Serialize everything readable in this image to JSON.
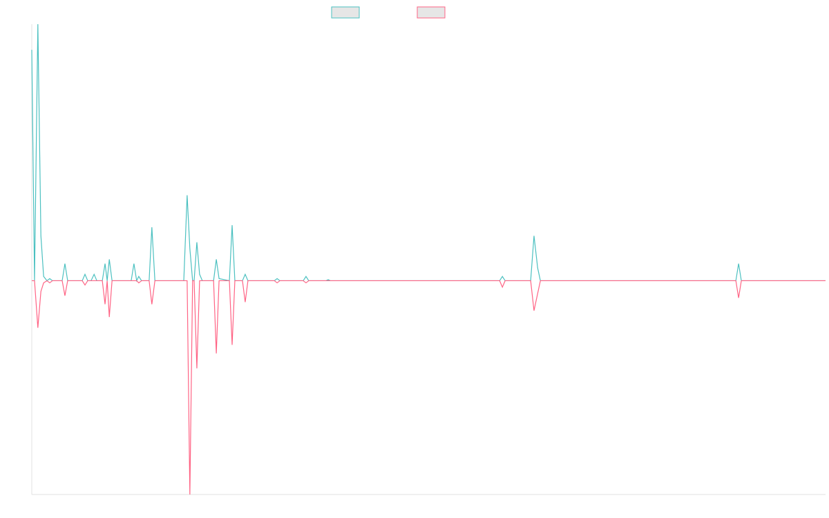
{
  "chart_data": {
    "type": "line",
    "x": [
      0,
      0.9,
      2.0,
      3.0,
      3.9,
      5.0,
      5.9,
      6.8,
      10,
      10.9,
      11.8,
      16.6,
      17.5,
      18.4,
      19.5,
      20.5,
      21.4,
      23.2,
      24.1,
      24.8,
      25.5,
      26.4,
      32.7,
      33.6,
      34.5,
      35.2,
      36.1,
      38.6,
      39.5,
      40.5,
      50,
      51.1,
      52.0,
      52.9,
      53.4,
      54.3,
      55.2,
      56.1,
      59.8,
      60.7,
      61.6,
      65,
      65.9,
      66.8,
      69.3,
      70.2,
      71.1,
      79.8,
      80.7,
      81.6,
      89.3,
      90.2,
      91.1,
      96.8,
      97.5,
      98.2,
      153.9,
      154.8,
      155.7,
      164.1,
      165.2,
      166.4,
      167.3,
      231.6,
      232.5,
      233.4,
      261.1
    ],
    "series": [
      {
        "color": "#4bc0c0",
        "values": [
          108,
          0,
          120,
          21,
          2,
          0,
          1,
          0,
          0,
          8,
          0,
          0,
          3,
          0,
          0,
          3,
          0,
          0,
          8,
          0,
          10,
          0,
          0,
          8,
          0,
          2,
          0,
          0,
          25,
          0,
          0,
          40,
          15,
          0,
          0,
          18,
          3,
          0,
          0,
          10,
          1,
          0,
          26,
          0,
          0,
          3,
          0,
          0,
          1,
          0,
          0,
          2,
          0,
          0,
          0.5,
          0,
          0,
          2,
          0,
          0,
          21,
          6,
          0,
          0,
          8,
          0,
          0
        ]
      },
      {
        "color": "#ff6384",
        "values": [
          0,
          0,
          -22,
          -5,
          -1,
          0,
          -1,
          0,
          0,
          -7,
          0,
          0,
          -2,
          0,
          0,
          0,
          0,
          0,
          -11,
          0,
          -17,
          0,
          0,
          0,
          0,
          -1,
          0,
          0,
          -11,
          0,
          0,
          0,
          -100,
          0,
          0,
          -41,
          0,
          0,
          0,
          -34,
          0,
          0,
          -30,
          0,
          0,
          -10,
          0,
          0,
          -1,
          0,
          0,
          -1,
          0,
          0,
          0,
          0,
          0,
          -3,
          0,
          0,
          -14,
          -6,
          0,
          0,
          -8,
          0,
          0
        ]
      }
    ],
    "xlim": [
      0,
      261.1
    ],
    "ylim": [
      -100,
      120
    ]
  }
}
